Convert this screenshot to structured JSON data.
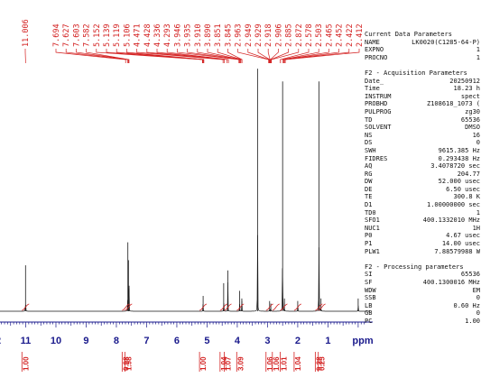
{
  "chart_data": {
    "type": "line",
    "xlabel": "ppm",
    "xlim": [
      12,
      -0.6
    ],
    "x_ticks": [
      "12",
      "11",
      "10",
      "9",
      "8",
      "7",
      "6",
      "5",
      "4",
      "3",
      "2",
      "1"
    ],
    "peak_labels": [
      "11.006",
      "7.694",
      "7.627",
      "7.603",
      "7.582",
      "5.152",
      "5.139",
      "5.119",
      "5.106",
      "4.471",
      "4.428",
      "4.336",
      "4.293",
      "3.946",
      "3.935",
      "3.910",
      "3.890",
      "3.851",
      "3.845",
      "2.963",
      "2.949",
      "2.929",
      "2.918",
      "2.906",
      "2.885",
      "2.872",
      "2.578",
      "2.503",
      "2.465",
      "2.452",
      "2.422",
      "2.412"
    ],
    "peaks": [
      {
        "x": 11.006,
        "y": 0.18
      },
      {
        "x": 7.6,
        "y": 0.2
      },
      {
        "x": 7.62,
        "y": 0.27
      },
      {
        "x": 7.58,
        "y": 0.1
      },
      {
        "x": 5.13,
        "y": 0.06
      },
      {
        "x": 4.45,
        "y": 0.11
      },
      {
        "x": 4.31,
        "y": 0.16
      },
      {
        "x": 3.92,
        "y": 0.08
      },
      {
        "x": 3.85,
        "y": 0.05
      },
      {
        "x": 3.33,
        "y": 0.95
      },
      {
        "x": 2.93,
        "y": 0.04
      },
      {
        "x": 2.89,
        "y": 0.03
      },
      {
        "x": 2.5,
        "y": 0.9
      },
      {
        "x": 2.44,
        "y": 0.05
      },
      {
        "x": 2.0,
        "y": 0.04
      },
      {
        "x": 1.3,
        "y": 0.9
      },
      {
        "x": 1.23,
        "y": 0.05
      },
      {
        "x": 0.0,
        "y": 0.05
      }
    ],
    "integrals": [
      {
        "x": 11.006,
        "label": "1.00"
      },
      {
        "x": 7.69,
        "label": "0.98"
      },
      {
        "x": 7.6,
        "label": "1.98"
      },
      {
        "x": 5.13,
        "label": "1.00"
      },
      {
        "x": 4.45,
        "label": "1.04"
      },
      {
        "x": 4.31,
        "label": "1.07"
      },
      {
        "x": 3.9,
        "label": "3.09"
      },
      {
        "x": 2.93,
        "label": "1.06"
      },
      {
        "x": 2.72,
        "label": "1.06"
      },
      {
        "x": 2.46,
        "label": "1.01"
      },
      {
        "x": 2.0,
        "label": "1.04"
      },
      {
        "x": 1.3,
        "label": "9.28"
      },
      {
        "x": 1.2,
        "label": "0.25"
      }
    ],
    "colors": {
      "spectrum": "#1a1a1a",
      "peak_label": "#d32020",
      "axis": "#1a1a8c",
      "integral": "#d32020"
    }
  },
  "parameters": {
    "header": [
      {
        "key": "Current Data Parameters",
        "value": ""
      },
      {
        "key": "NAME",
        "value": "LK0020(C1285-64-P)"
      },
      {
        "key": "EXPNO",
        "value": "1"
      },
      {
        "key": "PROCNO",
        "value": "1"
      }
    ],
    "acquisition_title": "F2 - Acquisition Parameters",
    "acquisition": [
      {
        "key": "Date_",
        "value": "20250912"
      },
      {
        "key": "Time",
        "value": "18.23 h"
      },
      {
        "key": "INSTRUM",
        "value": "spect"
      },
      {
        "key": "PROBHD",
        "value": "Z108618_1073 ("
      },
      {
        "key": "PULPROG",
        "value": "zg30"
      },
      {
        "key": "TD",
        "value": "65536"
      },
      {
        "key": "SOLVENT",
        "value": "DMSO"
      },
      {
        "key": "NS",
        "value": "16"
      },
      {
        "key": "DS",
        "value": "0"
      },
      {
        "key": "SWH",
        "value": "9615.385 Hz"
      },
      {
        "key": "FIDRES",
        "value": "0.293438 Hz"
      },
      {
        "key": "AQ",
        "value": "3.4078720 sec"
      },
      {
        "key": "RG",
        "value": "204.77"
      },
      {
        "key": "DW",
        "value": "52.000 usec"
      },
      {
        "key": "DE",
        "value": "6.50 usec"
      },
      {
        "key": "TE",
        "value": "300.8 K"
      },
      {
        "key": "D1",
        "value": "1.00000000 sec"
      },
      {
        "key": "TD0",
        "value": "1"
      },
      {
        "key": "SFO1",
        "value": "400.1332010 MHz"
      },
      {
        "key": "NUC1",
        "value": "1H"
      },
      {
        "key": "P0",
        "value": "4.67 usec"
      },
      {
        "key": "P1",
        "value": "14.00 usec"
      },
      {
        "key": "PLW1",
        "value": "7.88579988 W"
      }
    ],
    "processing_title": "F2 - Processing parameters",
    "processing": [
      {
        "key": "SI",
        "value": "65536"
      },
      {
        "key": "SF",
        "value": "400.1300016 MHz"
      },
      {
        "key": "WDW",
        "value": "EM"
      },
      {
        "key": "SSB",
        "value": "0"
      },
      {
        "key": "LB",
        "value": "0.60 Hz"
      },
      {
        "key": "GB",
        "value": "0"
      },
      {
        "key": "PC",
        "value": "1.00"
      }
    ]
  }
}
